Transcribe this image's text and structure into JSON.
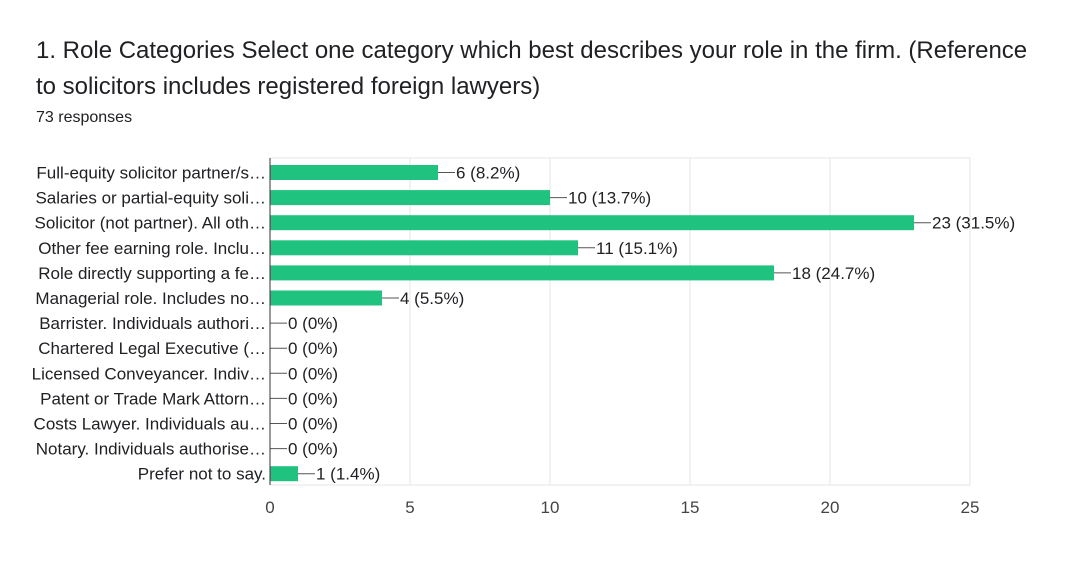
{
  "header": {
    "title": "1. Role Categories  Select one category which best describes your role in the firm. (Reference to solicitors includes registered foreign lawyers)",
    "subtitle": "73 responses"
  },
  "chart_data": {
    "type": "bar",
    "orientation": "horizontal",
    "categories": [
      "Full-equity solicitor partner/s…",
      "Salaries or partial-equity soli…",
      "Solicitor (not partner). All oth…",
      "Other fee earning role. Inclu…",
      "Role directly supporting a fe…",
      "Managerial role. Includes no…",
      "Barrister. Individuals authori…",
      "Chartered Legal Executive (…",
      "Licensed Conveyancer. Indiv…",
      "Patent or Trade Mark Attorn…",
      "Costs Lawyer. Individuals au…",
      "Notary. Individuals authorise…",
      "Prefer not to say."
    ],
    "values": [
      6,
      10,
      23,
      11,
      18,
      4,
      0,
      0,
      0,
      0,
      0,
      0,
      1
    ],
    "data_labels": [
      "6 (8.2%)",
      "10 (13.7%)",
      "23 (31.5%)",
      "11 (15.1%)",
      "18 (24.7%)",
      "4 (5.5%)",
      "0 (0%)",
      "0 (0%)",
      "0 (0%)",
      "0 (0%)",
      "0 (0%)",
      "0 (0%)",
      "1 (1.4%)"
    ],
    "xlim": [
      0,
      25
    ],
    "xticks": [
      "0",
      "5",
      "10",
      "15",
      "20",
      "25"
    ],
    "grid": true,
    "bar_color": "#1fc37f",
    "xlabel": "",
    "ylabel": ""
  }
}
